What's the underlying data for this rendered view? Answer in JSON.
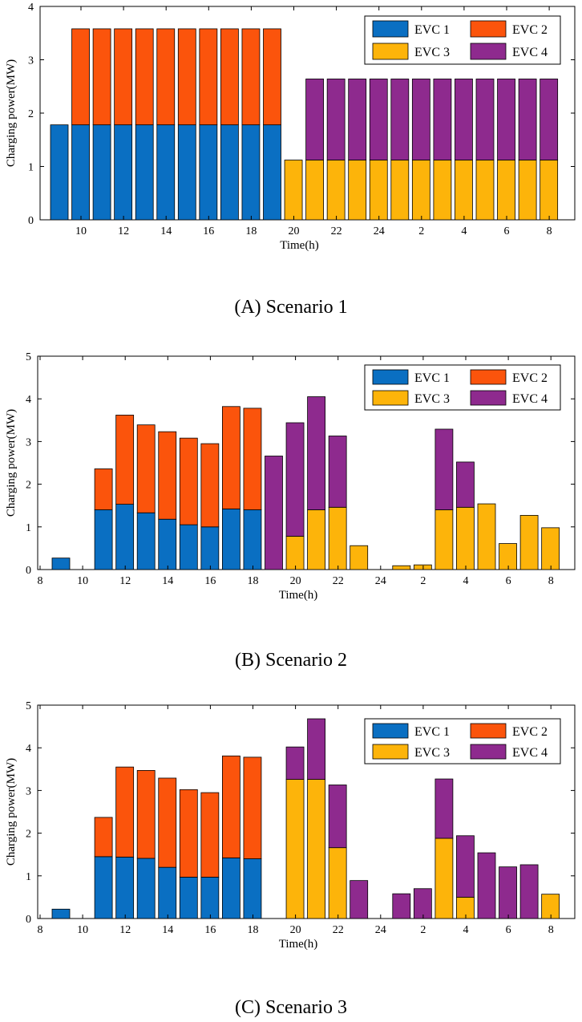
{
  "colors": {
    "EVC 1": "#0a6fc2",
    "EVC 2": "#fb540c",
    "EVC 3": "#fdb40a",
    "EVC 4": "#8e2a8e"
  },
  "chart_data": [
    {
      "type": "bar",
      "stacked": true,
      "caption": "(A) Scenario 1",
      "xlabel": "Time(h)",
      "ylabel": "Charging power(MW)",
      "ylim": [
        0,
        4
      ],
      "yticks": [
        "0",
        "1",
        "2",
        "3",
        "4"
      ],
      "x": [
        9,
        10,
        11,
        12,
        13,
        14,
        15,
        16,
        17,
        18,
        19,
        20,
        21,
        22,
        23,
        24,
        1,
        2,
        3,
        4,
        5,
        6,
        7,
        8
      ],
      "xtick_labels": [
        "10",
        "12",
        "14",
        "16",
        "18",
        "20",
        "22",
        "24",
        "2",
        "4",
        "6",
        "8"
      ],
      "legend": [
        "EVC 1",
        "EVC 2",
        "EVC 3",
        "EVC 4"
      ],
      "series": [
        {
          "name": "EVC 1",
          "values": [
            1.78,
            1.78,
            1.78,
            1.78,
            1.78,
            1.78,
            1.78,
            1.78,
            1.78,
            1.78,
            1.78,
            0,
            0,
            0,
            0,
            0,
            0,
            0,
            0,
            0,
            0,
            0,
            0,
            0
          ]
        },
        {
          "name": "EVC 2",
          "values": [
            0,
            1.8,
            1.8,
            1.8,
            1.8,
            1.8,
            1.8,
            1.8,
            1.8,
            1.8,
            1.8,
            0,
            0,
            0,
            0,
            0,
            0,
            0,
            0,
            0,
            0,
            0,
            0,
            0
          ]
        },
        {
          "name": "EVC 3",
          "values": [
            0,
            0,
            0,
            0,
            0,
            0,
            0,
            0,
            0,
            0,
            0,
            1.12,
            1.12,
            1.12,
            1.12,
            1.12,
            1.12,
            1.12,
            1.12,
            1.12,
            1.12,
            1.12,
            1.12,
            1.12
          ]
        },
        {
          "name": "EVC 4",
          "values": [
            0,
            0,
            0,
            0,
            0,
            0,
            0,
            0,
            0,
            0,
            0,
            0,
            1.52,
            1.52,
            1.52,
            1.52,
            1.52,
            1.52,
            1.52,
            1.52,
            1.52,
            1.52,
            1.52,
            1.52
          ]
        }
      ]
    },
    {
      "type": "bar",
      "stacked": true,
      "caption": "(B) Scenario 2",
      "xlabel": "Time(h)",
      "ylabel": "Charging power(MW)",
      "ylim": [
        0,
        5
      ],
      "yticks": [
        "0",
        "1",
        "2",
        "3",
        "4",
        "5"
      ],
      "x": [
        9,
        10,
        11,
        12,
        13,
        14,
        15,
        16,
        17,
        18,
        19,
        20,
        21,
        22,
        23,
        24,
        1,
        2,
        3,
        4,
        5,
        6,
        7,
        8
      ],
      "xtick_labels": [
        "8",
        "10",
        "12",
        "14",
        "16",
        "18",
        "20",
        "22",
        "24",
        "2",
        "4",
        "6",
        "8"
      ],
      "legend": [
        "EVC 1",
        "EVC 2",
        "EVC 3",
        "EVC 4"
      ],
      "series": [
        {
          "name": "EVC 1",
          "values": [
            0.27,
            0,
            1.4,
            1.53,
            1.33,
            1.18,
            1.05,
            1.0,
            1.42,
            1.4,
            0,
            0,
            0,
            0,
            0,
            0,
            0,
            0,
            0,
            0,
            0,
            0,
            0,
            0
          ]
        },
        {
          "name": "EVC 2",
          "values": [
            0,
            0,
            0.96,
            2.09,
            2.06,
            2.05,
            2.03,
            1.95,
            2.4,
            2.38,
            0,
            0,
            0,
            0,
            0,
            0,
            0,
            0,
            0,
            0,
            0,
            0,
            0,
            0
          ]
        },
        {
          "name": "EVC 3",
          "values": [
            0,
            0,
            0,
            0,
            0,
            0,
            0,
            0,
            0,
            0,
            0,
            0.78,
            1.4,
            1.46,
            0.56,
            0,
            0.09,
            0.11,
            1.4,
            1.46,
            1.54,
            0.61,
            1.27,
            0.98
          ]
        },
        {
          "name": "EVC 4",
          "values": [
            0,
            0,
            0,
            0,
            0,
            0,
            0,
            0,
            0,
            0,
            2.66,
            2.66,
            2.65,
            1.67,
            0,
            0,
            0,
            0,
            1.89,
            1.06,
            0,
            0,
            0,
            0
          ]
        }
      ]
    },
    {
      "type": "bar",
      "stacked": true,
      "caption": "(C) Scenario 3",
      "xlabel": "Time(h)",
      "ylabel": "Charging power(MW)",
      "ylim": [
        0,
        5
      ],
      "yticks": [
        "0",
        "1",
        "2",
        "3",
        "4",
        "5"
      ],
      "x": [
        9,
        10,
        11,
        12,
        13,
        14,
        15,
        16,
        17,
        18,
        19,
        20,
        21,
        22,
        23,
        24,
        1,
        2,
        3,
        4,
        5,
        6,
        7,
        8
      ],
      "xtick_labels": [
        "8",
        "10",
        "12",
        "14",
        "16",
        "18",
        "20",
        "22",
        "24",
        "2",
        "4",
        "6",
        "8"
      ],
      "legend": [
        "EVC 1",
        "EVC 2",
        "EVC 3",
        "EVC 4"
      ],
      "series": [
        {
          "name": "EVC 1",
          "values": [
            0.22,
            0,
            1.45,
            1.44,
            1.41,
            1.2,
            0.97,
            0.97,
            1.42,
            1.4,
            0,
            0,
            0,
            0,
            0,
            0,
            0,
            0,
            0,
            0,
            0,
            0,
            0,
            0
          ]
        },
        {
          "name": "EVC 2",
          "values": [
            0,
            0,
            0.92,
            2.11,
            2.06,
            2.09,
            2.05,
            1.98,
            2.39,
            2.38,
            0,
            0,
            0,
            0,
            0,
            0,
            0,
            0,
            0,
            0,
            0,
            0,
            0,
            0
          ]
        },
        {
          "name": "EVC 3",
          "values": [
            0,
            0,
            0,
            0,
            0,
            0,
            0,
            0,
            0,
            0,
            0,
            3.26,
            3.26,
            1.66,
            0,
            0,
            0,
            0,
            1.88,
            0.5,
            0,
            0,
            0,
            0.57
          ]
        },
        {
          "name": "EVC 4",
          "values": [
            0,
            0,
            0,
            0,
            0,
            0,
            0,
            0,
            0,
            0,
            0,
            0.76,
            1.42,
            1.47,
            0.89,
            0,
            0.58,
            0.7,
            1.39,
            1.44,
            1.54,
            1.21,
            1.26,
            0
          ]
        }
      ]
    }
  ]
}
